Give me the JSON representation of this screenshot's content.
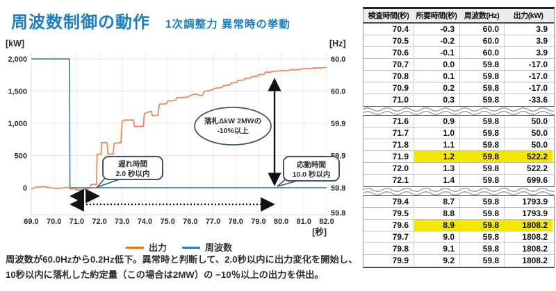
{
  "title": {
    "main": "周波数制御の動作",
    "subtitle": "1次調整力 異常時の挙動"
  },
  "chart_data": {
    "type": "line",
    "title": "周波数制御の動作",
    "subtitle": "1次調整力 異常時の挙動",
    "x_axis": {
      "unit": "[秒]",
      "tick_values": [
        69,
        70,
        71,
        72,
        73,
        74,
        75,
        76,
        77,
        78,
        79,
        80,
        81,
        82
      ],
      "tick_labels": [
        "69.0",
        "70.0",
        "71.0",
        "72.0",
        "73.0",
        "74.0",
        "75.0",
        "76.0",
        "77.0",
        "78.0",
        "79.0",
        "80.0",
        "81.0",
        "82.0"
      ],
      "range": [
        69,
        82
      ]
    },
    "y_left": {
      "unit": "[kW]",
      "tick_values": [
        2000,
        1500,
        1000,
        500,
        0
      ],
      "tick_labels": [
        "2,000",
        "1,500",
        "1,000",
        "500",
        "0"
      ]
    },
    "y_right": {
      "unit": "[Hz]",
      "tick_labels": [
        "60.0",
        "60.0",
        "59.9",
        "59.9",
        "59.8",
        "59.8"
      ]
    },
    "series": [
      {
        "name": "周波数",
        "axis": "Hz",
        "color": "#4e86b4",
        "points": [
          [
            69.0,
            60.0
          ],
          [
            70.68,
            60.0
          ],
          [
            70.7,
            59.8
          ],
          [
            82.0,
            59.8
          ]
        ]
      },
      {
        "name": "出力",
        "axis": "kW",
        "color": "#ef8757",
        "points": [
          [
            69.0,
            -20
          ],
          [
            69.25,
            12
          ],
          [
            69.55,
            18
          ],
          [
            69.85,
            0
          ],
          [
            70.1,
            -10
          ],
          [
            70.35,
            -5
          ],
          [
            70.55,
            4
          ],
          [
            70.68,
            4
          ],
          [
            70.7,
            -17
          ],
          [
            70.95,
            -17
          ],
          [
            71.0,
            -34
          ],
          [
            71.25,
            -30
          ],
          [
            71.5,
            -12
          ],
          [
            71.58,
            -12
          ],
          [
            71.62,
            50
          ],
          [
            71.87,
            50
          ],
          [
            71.9,
            522
          ],
          [
            72.07,
            522
          ],
          [
            72.1,
            700
          ],
          [
            72.33,
            700
          ],
          [
            72.38,
            525
          ],
          [
            72.6,
            520
          ],
          [
            72.65,
            690
          ],
          [
            72.95,
            700
          ],
          [
            73.0,
            1030
          ],
          [
            73.1,
            1050
          ],
          [
            73.5,
            1050
          ],
          [
            73.55,
            950
          ],
          [
            73.93,
            955
          ],
          [
            73.98,
            1150
          ],
          [
            74.2,
            1180
          ],
          [
            74.28,
            1190
          ],
          [
            74.33,
            1120
          ],
          [
            74.58,
            1125
          ],
          [
            74.63,
            1295
          ],
          [
            74.95,
            1305
          ],
          [
            75.0,
            1345
          ],
          [
            75.35,
            1355
          ],
          [
            75.4,
            1395
          ],
          [
            75.85,
            1405
          ],
          [
            76.1,
            1445
          ],
          [
            76.3,
            1455
          ],
          [
            76.38,
            1430
          ],
          [
            76.55,
            1435
          ],
          [
            76.6,
            1495
          ],
          [
            76.85,
            1505
          ],
          [
            77.1,
            1545
          ],
          [
            77.4,
            1555
          ],
          [
            77.45,
            1585
          ],
          [
            77.75,
            1595
          ],
          [
            77.8,
            1625
          ],
          [
            78.05,
            1635
          ],
          [
            78.1,
            1665
          ],
          [
            78.35,
            1672
          ],
          [
            78.4,
            1695
          ],
          [
            78.65,
            1702
          ],
          [
            78.7,
            1725
          ],
          [
            78.95,
            1732
          ],
          [
            79.0,
            1755
          ],
          [
            79.25,
            1760
          ],
          [
            79.3,
            1794
          ],
          [
            79.55,
            1794
          ],
          [
            79.6,
            1808
          ],
          [
            79.95,
            1812
          ],
          [
            80.0,
            1818
          ],
          [
            80.35,
            1822
          ],
          [
            80.4,
            1830
          ],
          [
            80.85,
            1835
          ],
          [
            80.9,
            1845
          ],
          [
            81.35,
            1850
          ],
          [
            81.4,
            1858
          ],
          [
            81.8,
            1862
          ],
          [
            82.0,
            1870
          ]
        ]
      }
    ],
    "annotations": {
      "delay_box": [
        "遅れ時間",
        "2.0 秒以内"
      ],
      "response_box": [
        "応動時間",
        "10.0 秒以内"
      ],
      "ellipse": [
        "落札ΔkW 2MWの",
        "-10%以上"
      ]
    },
    "legend": [
      "出力",
      "周波数"
    ],
    "legend_colors": [
      "#e8741e",
      "#2e7fb8"
    ]
  },
  "description": {
    "line1": "周波数が60.0Hzから0.2Hz低下。異常時と判断して、2.0秒以内に出力変化を開始し、",
    "line2": "10秒以内に落札した約定量（この場合は2MW）の −10％以上の出力を供出。"
  },
  "table": {
    "headers": [
      "検査時間(秒)",
      "所要時間(秒)",
      "周波数(Hz)",
      "出力(kW)"
    ],
    "highlight_color": "#f3e600",
    "sections": [
      {
        "rows": [
          {
            "cells": [
              "70.4",
              "-0.3",
              "60.0",
              "3.9"
            ],
            "highlight": false
          },
          {
            "cells": [
              "70.5",
              "-0.2",
              "60.0",
              "3.9"
            ],
            "highlight": false
          },
          {
            "cells": [
              "70.6",
              "-0.1",
              "60.0",
              "3.9"
            ],
            "highlight": false
          },
          {
            "cells": [
              "70.7",
              "0.0",
              "59.8",
              "-17.0"
            ],
            "highlight": false
          },
          {
            "cells": [
              "70.8",
              "0.1",
              "59.8",
              "-17.0"
            ],
            "highlight": false
          },
          {
            "cells": [
              "70.9",
              "0.2",
              "59.8",
              "-17.0"
            ],
            "highlight": false
          },
          {
            "cells": [
              "71.0",
              "0.3",
              "59.8",
              "-33.6"
            ],
            "highlight": false
          }
        ]
      },
      {
        "rows": [
          {
            "cells": [
              "71.6",
              "0.9",
              "59.8",
              "50.0"
            ],
            "highlight": false
          },
          {
            "cells": [
              "71.7",
              "1.0",
              "59.8",
              "50.0"
            ],
            "highlight": false
          },
          {
            "cells": [
              "71.8",
              "1.1",
              "59.8",
              "50.0"
            ],
            "highlight": false
          },
          {
            "cells": [
              "71.9",
              "1.2",
              "59.8",
              "522.2"
            ],
            "highlight": true
          },
          {
            "cells": [
              "72.0",
              "1.3",
              "59.8",
              "522.2"
            ],
            "highlight": false
          },
          {
            "cells": [
              "72.1",
              "1.4",
              "59.8",
              "699.6"
            ],
            "highlight": false
          }
        ]
      },
      {
        "rows": [
          {
            "cells": [
              "79.4",
              "8.7",
              "59.8",
              "1793.9"
            ],
            "highlight": false
          },
          {
            "cells": [
              "79.5",
              "8.8",
              "59.8",
              "1793.9"
            ],
            "highlight": false
          },
          {
            "cells": [
              "79.6",
              "8.9",
              "59.8",
              "1808.2"
            ],
            "highlight": true
          },
          {
            "cells": [
              "79.7",
              "9.0",
              "59.8",
              "1808.2"
            ],
            "highlight": false
          },
          {
            "cells": [
              "79.8",
              "9.1",
              "59.8",
              "1808.2"
            ],
            "highlight": false
          },
          {
            "cells": [
              "79.9",
              "9.2",
              "59.8",
              "1808.2"
            ],
            "highlight": false
          }
        ]
      }
    ]
  }
}
